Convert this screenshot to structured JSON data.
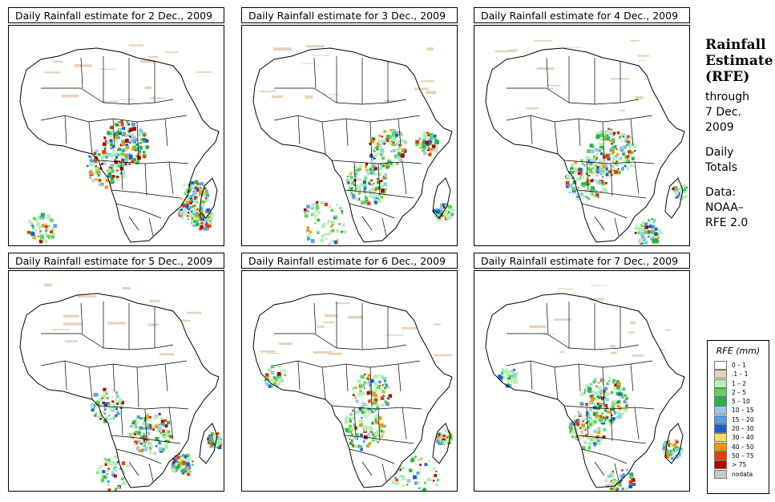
{
  "panels": [
    {
      "title": "Daily Rainfall estimate for  2 Dec., 2009"
    },
    {
      "title": "Daily Rainfall estimate for  3 Dec., 2009"
    },
    {
      "title": "Daily Rainfall estimate for  4 Dec., 2009"
    },
    {
      "title": "Daily Rainfall estimate for  5 Dec., 2009"
    },
    {
      "title": "Daily Rainfall estimate for  6 Dec., 2009"
    },
    {
      "title": "Daily Rainfall estimate for  7 Dec., 2009"
    }
  ],
  "side": {
    "title_1": "Rainfall",
    "title_2": "Estimate",
    "title_3": "(RFE)",
    "through_1": "through",
    "through_2": "7 Dec.",
    "through_3": "2009",
    "daily_1": "Daily",
    "daily_2": "Totals",
    "data_1": "Data:",
    "data_2": "NOAA–",
    "data_3": "RFE 2.0"
  },
  "legend": {
    "title": "RFE (mm)",
    "items": [
      {
        "label": "0 – 1",
        "color": "#ffffff"
      },
      {
        "label": ".1 – 1",
        "color": "#e6d2bc"
      },
      {
        "label": "1 – 2",
        "color": "#b4f0b4"
      },
      {
        "label": "2 – 5",
        "color": "#5ad25a"
      },
      {
        "label": "5 – 10",
        "color": "#28b43c"
      },
      {
        "label": "10 – 15",
        "color": "#96c8f0"
      },
      {
        "label": "15 – 20",
        "color": "#5a9ce6"
      },
      {
        "label": "20 – 30",
        "color": "#1e5ad2"
      },
      {
        "label": "30 – 40",
        "color": "#fadc64"
      },
      {
        "label": "40 – 50",
        "color": "#fa9600"
      },
      {
        "label": "50 – 75",
        "color": "#e63c00"
      },
      {
        "label": "> 75",
        "color": "#b40000"
      },
      {
        "label": "nodata",
        "color": "#c8c8c8"
      }
    ]
  }
}
